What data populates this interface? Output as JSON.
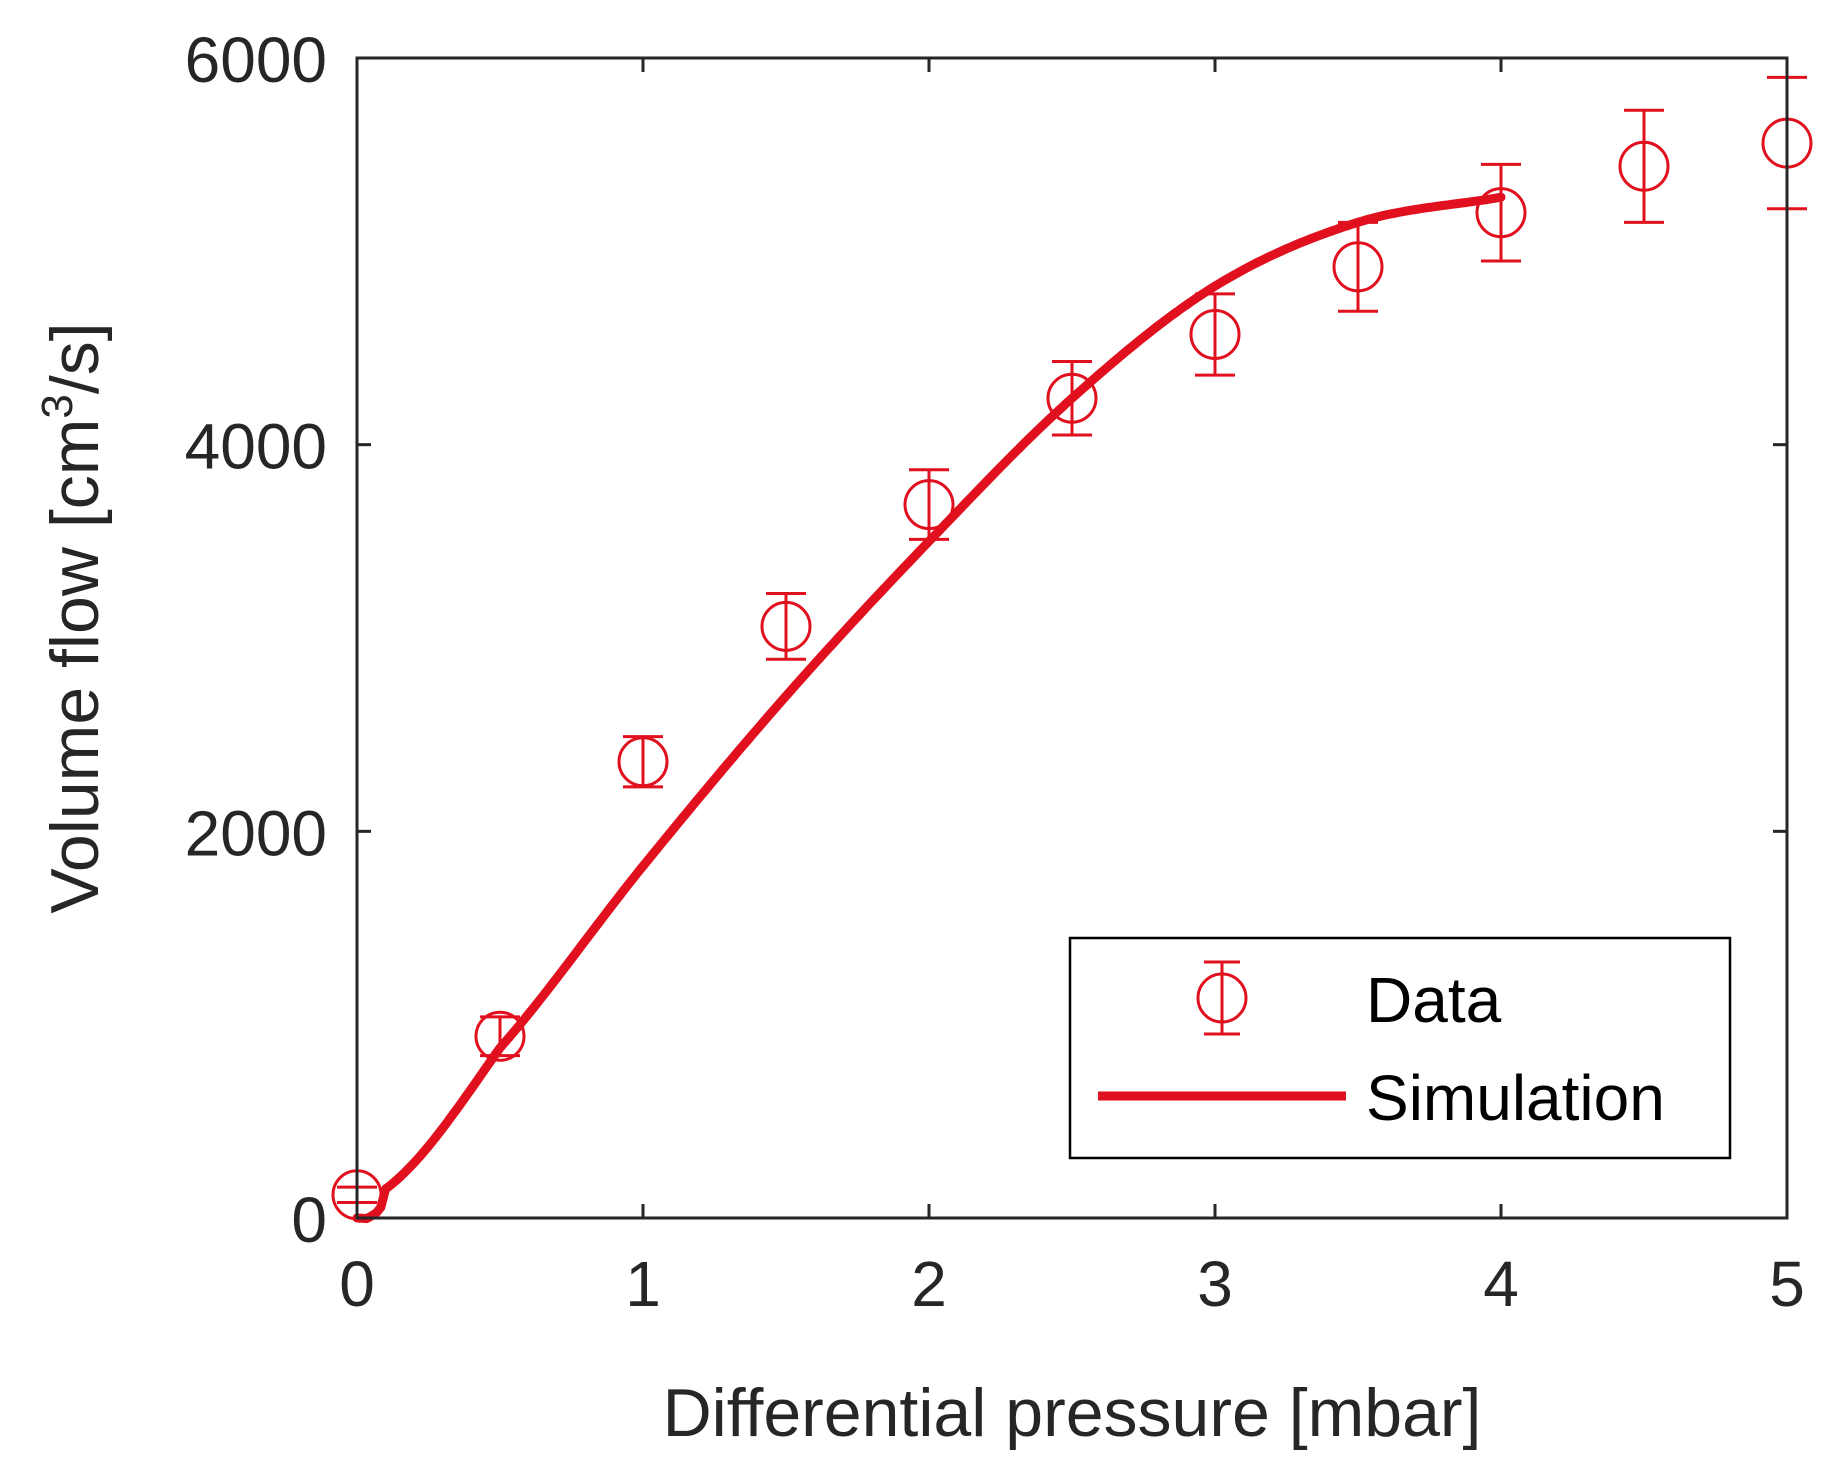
{
  "chart_data": {
    "type": "scatter",
    "title": "",
    "xlabel": "Differential pressure [mbar]",
    "ylabel_main": "Volume flow [cm",
    "ylabel_sup": "3",
    "ylabel_end": "/s]",
    "xlim": [
      0,
      5
    ],
    "ylim": [
      0,
      6000
    ],
    "xticks": [
      0,
      1,
      2,
      3,
      4,
      5
    ],
    "xtick_labels": [
      "0",
      "1",
      "2",
      "3",
      "4",
      "5"
    ],
    "yticks": [
      0,
      2000,
      4000,
      6000
    ],
    "ytick_labels": [
      "0",
      "2000",
      "4000",
      "6000"
    ],
    "grid": false,
    "legend_position": "bottom-right",
    "series": [
      {
        "name": "Data",
        "kind": "errorbar-markers",
        "color": "#e0101e",
        "x": [
          0,
          0.5,
          1.0,
          1.5,
          2.0,
          2.5,
          3.0,
          3.5,
          4.0,
          4.5,
          5.0
        ],
        "y": [
          120,
          940,
          2360,
          3060,
          3690,
          4240,
          4570,
          4920,
          5200,
          5440,
          5560
        ],
        "error": [
          40,
          100,
          130,
          170,
          180,
          190,
          210,
          230,
          250,
          290,
          340
        ]
      },
      {
        "name": "Simulation",
        "kind": "line",
        "color": "#e0101e",
        "x": [
          0,
          0.05,
          0.1,
          0.5,
          1.0,
          1.5,
          2.0,
          2.5,
          3.0,
          3.5,
          4.0
        ],
        "y": [
          0,
          10,
          150,
          880,
          1820,
          2700,
          3500,
          4240,
          4820,
          5150,
          5280
        ]
      }
    ]
  }
}
